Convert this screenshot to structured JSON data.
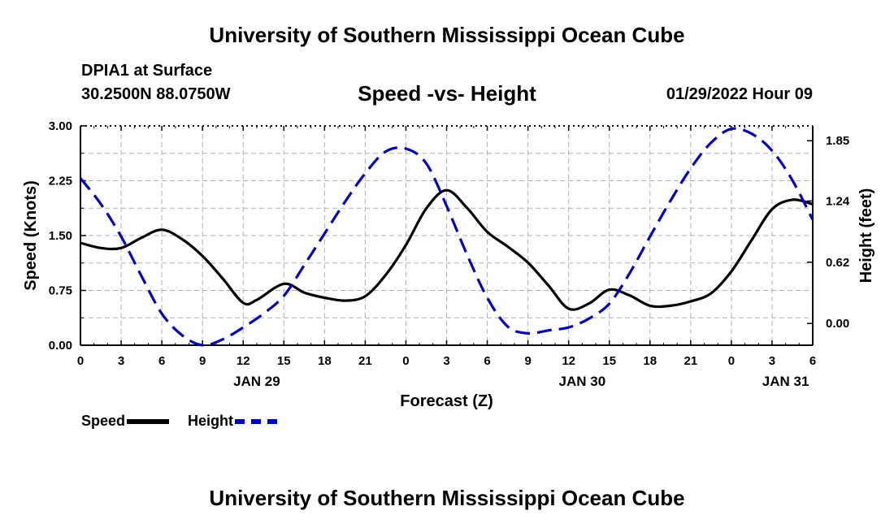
{
  "header": {
    "title": "University of Southern Mississippi Ocean Cube",
    "station": "DPIA1 at Surface",
    "coords": "30.2500N  88.0750W",
    "datetime": "01/29/2022 Hour 09"
  },
  "footer": {
    "title": "University of Southern Mississippi Ocean Cube"
  },
  "legend": {
    "speed_label": "Speed",
    "height_label": "Height"
  },
  "colors": {
    "speed": "#000000",
    "height": "#0000cc",
    "grid": "#b0b0b0"
  },
  "chart_data": {
    "type": "line",
    "title": "Speed -vs- Height",
    "xlabel": "Forecast (Z)",
    "ylabel": "Speed (Knots)",
    "y2label": "Height (feet)",
    "x_range_hours": [
      0,
      54
    ],
    "x_tick_labels": [
      "0",
      "3",
      "6",
      "9",
      "12",
      "15",
      "18",
      "21",
      "0",
      "3",
      "6",
      "9",
      "12",
      "15",
      "18",
      "21",
      "0",
      "3",
      "6"
    ],
    "date_labels": [
      {
        "hour": 13,
        "label": "JAN 29"
      },
      {
        "hour": 37,
        "label": "JAN 30"
      },
      {
        "hour": 52,
        "label": "JAN 31"
      }
    ],
    "ylim": [
      0,
      3
    ],
    "y_ticks": [
      "0.00",
      "0.75",
      "1.50",
      "2.25",
      "3.00"
    ],
    "y2lim": [
      -0.22,
      2.0
    ],
    "y2_ticks": [
      "0.00",
      "0.62",
      "1.24",
      "1.85"
    ],
    "grid": true,
    "series": [
      {
        "name": "Speed",
        "axis": "left",
        "style": "solid",
        "x": [
          0,
          1.5,
          3,
          4.5,
          6,
          7.5,
          9,
          10.5,
          12,
          13,
          15,
          16.5,
          18,
          19.5,
          21,
          22.5,
          24,
          25.5,
          27,
          28.5,
          30,
          31.5,
          33,
          34.5,
          36,
          37.5,
          39,
          40.5,
          42,
          43.5,
          45,
          46.5,
          48,
          49.5,
          51,
          52.5,
          54
        ],
        "values": [
          1.4,
          1.33,
          1.33,
          1.47,
          1.58,
          1.45,
          1.22,
          0.91,
          0.58,
          0.62,
          0.84,
          0.72,
          0.65,
          0.61,
          0.67,
          0.96,
          1.37,
          1.87,
          2.12,
          1.88,
          1.55,
          1.35,
          1.13,
          0.82,
          0.5,
          0.57,
          0.76,
          0.68,
          0.54,
          0.54,
          0.6,
          0.71,
          1.01,
          1.44,
          1.86,
          1.99,
          1.93
        ]
      },
      {
        "name": "Height",
        "axis": "right",
        "style": "dashed",
        "x": [
          0,
          1.5,
          3,
          4.5,
          6,
          7.5,
          9,
          10.5,
          12,
          13.5,
          15,
          16.5,
          18,
          19.5,
          21,
          22.5,
          24,
          25.5,
          27,
          28.5,
          30,
          31.5,
          33,
          34.5,
          36,
          37.5,
          39,
          40.5,
          42,
          43.5,
          45,
          46.5,
          48,
          49.5,
          51,
          52.5,
          54
        ],
        "values": [
          1.47,
          1.21,
          0.88,
          0.48,
          0.1,
          -0.12,
          -0.22,
          -0.16,
          -0.04,
          0.1,
          0.28,
          0.59,
          0.91,
          1.23,
          1.52,
          1.74,
          1.77,
          1.62,
          1.19,
          0.7,
          0.26,
          -0.03,
          -0.1,
          -0.07,
          -0.04,
          0.05,
          0.2,
          0.51,
          0.88,
          1.24,
          1.57,
          1.83,
          1.97,
          1.92,
          1.75,
          1.45,
          1.05
        ]
      }
    ]
  }
}
